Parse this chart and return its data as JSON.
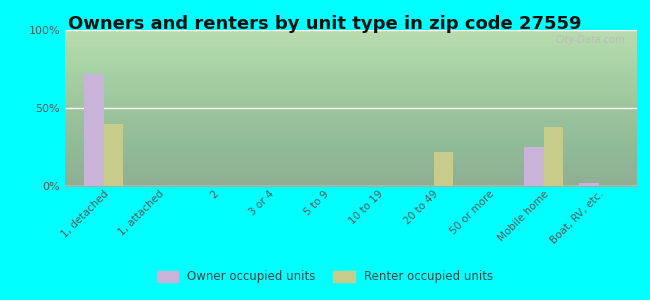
{
  "title": "Owners and renters by unit type in zip code 27559",
  "categories": [
    "1, detached",
    "1, attached",
    "2",
    "3 or 4",
    "5 to 9",
    "10 to 19",
    "20 to 49",
    "50 or more",
    "Mobile home",
    "Boat, RV, etc."
  ],
  "owner_values": [
    72,
    0,
    0,
    0,
    0,
    0,
    0,
    0,
    25,
    2
  ],
  "renter_values": [
    40,
    0,
    0,
    0,
    0,
    0,
    22,
    0,
    38,
    0
  ],
  "owner_color": "#c9b3d9",
  "renter_color": "#c8cc8a",
  "background_color": "#00ffff",
  "ylim": [
    0,
    100
  ],
  "yticks": [
    0,
    50,
    100
  ],
  "ytick_labels": [
    "0%",
    "50%",
    "100%"
  ],
  "title_fontsize": 13,
  "legend_labels": [
    "Owner occupied units",
    "Renter occupied units"
  ],
  "watermark": "City-Data.com"
}
